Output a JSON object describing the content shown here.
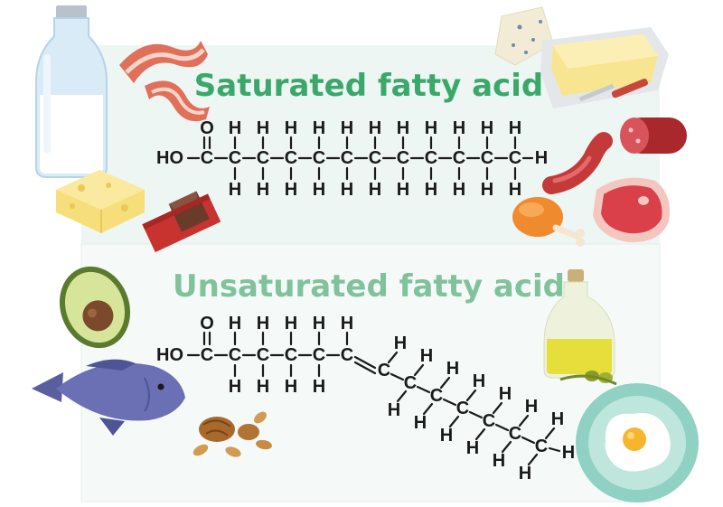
{
  "titles": {
    "saturated": "Saturated fatty acid",
    "unsaturated": "Unsaturated fatty acid"
  },
  "colors": {
    "saturated_title": "#3aa86b",
    "unsaturated_title": "#7fc29b",
    "panel": "#eef6f3",
    "panel_border": "#d6e8e1"
  },
  "structure_text": {
    "carboxyl_O": "O",
    "hydroxyl": "HO",
    "carbon": "C",
    "hydrogen": "H"
  },
  "foods": {
    "saturated": [
      "milk-bottle-icon",
      "bacon-icon",
      "cheese-icon",
      "chocolate-icon",
      "butter-icon",
      "blue-cheese-icon",
      "sausage-icon",
      "salami-icon",
      "chicken-leg-icon",
      "steak-icon"
    ],
    "unsaturated": [
      "avocado-icon",
      "fish-icon",
      "nuts-icon",
      "olive-oil-icon",
      "egg-plate-icon"
    ]
  }
}
